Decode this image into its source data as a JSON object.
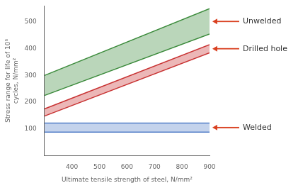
{
  "chart_data": {
    "type": "band",
    "x": [
      300,
      900
    ],
    "xlabel": "Ultimate tensile strength of steel, N/mm²",
    "ylabel": "Stress range for life of 10⁶\ncycles, N/mm²",
    "xlim": [
      300,
      900
    ],
    "ylim": [
      0,
      560
    ],
    "xticks": [
      400,
      500,
      600,
      700,
      800,
      900
    ],
    "yticks": [
      100,
      200,
      300,
      400,
      500
    ],
    "grid": false,
    "series": [
      {
        "color": "#3a8a3a",
        "lower": [
          225,
          455
        ],
        "upper": [
          300,
          550
        ]
      },
      {
        "color": "#c83232",
        "lower": [
          148,
          385
        ],
        "upper": [
          175,
          415
        ]
      },
      {
        "color": "#5580c8",
        "lower": [
          88,
          88
        ],
        "upper": [
          122,
          122
        ]
      }
    ],
    "annotations": [
      {
        "text": "Unwelded",
        "y": 502,
        "color": "#d94020"
      },
      {
        "text": "Drilled hole",
        "y": 400,
        "color": "#d94020"
      },
      {
        "text": "Welded",
        "y": 105,
        "color": "#d94020"
      }
    ]
  }
}
